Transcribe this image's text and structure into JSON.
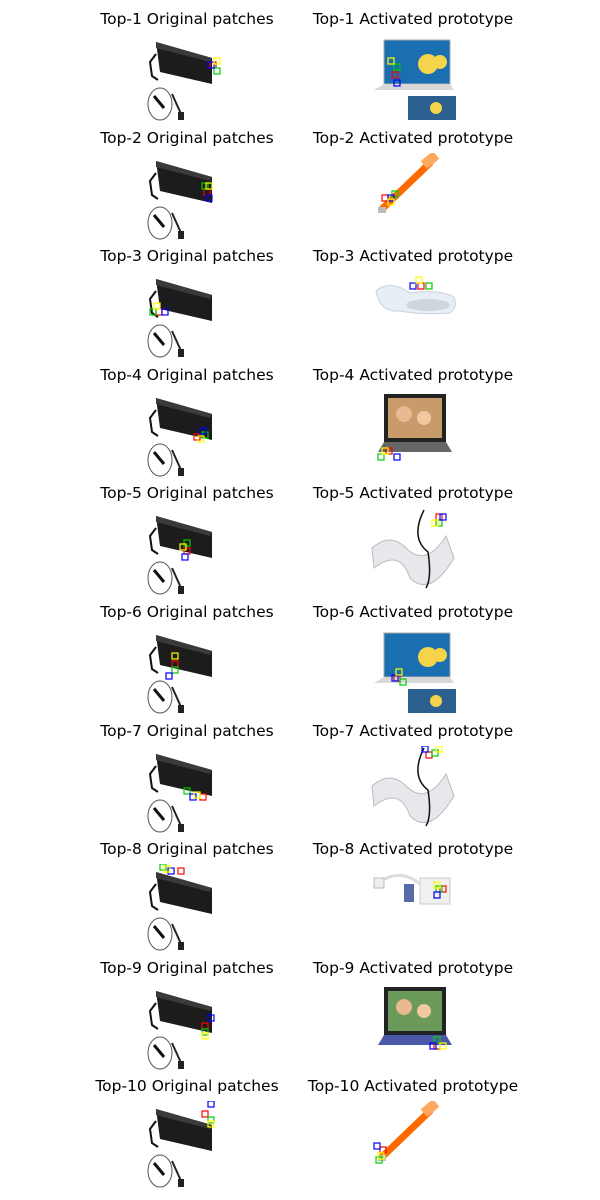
{
  "rows": [
    {
      "original_title": "Top-1 Original patches",
      "prototype_title": "Top-1 Activated prototype",
      "prototype_image": "laptop-minions"
    },
    {
      "original_title": "Top-2 Original patches",
      "prototype_title": "Top-2 Activated prototype",
      "prototype_image": "usb-led-light"
    },
    {
      "original_title": "Top-3 Original patches",
      "prototype_title": "Top-3 Activated prototype",
      "prototype_image": "white-usb-speaker"
    },
    {
      "original_title": "Top-4 Original patches",
      "prototype_title": "Top-4 Activated prototype",
      "prototype_image": "laptop-family"
    },
    {
      "original_title": "Top-5 Original patches",
      "prototype_title": "Top-5 Activated prototype",
      "prototype_image": "flexible-keyboard"
    },
    {
      "original_title": "Top-6 Original patches",
      "prototype_title": "Top-6 Activated prototype",
      "prototype_image": "laptop-minions"
    },
    {
      "original_title": "Top-7 Original patches",
      "prototype_title": "Top-7 Activated prototype",
      "prototype_image": "flexible-keyboard"
    },
    {
      "original_title": "Top-8 Original patches",
      "prototype_title": "Top-8 Activated prototype",
      "prototype_image": "white-power-adapter"
    },
    {
      "original_title": "Top-9 Original patches",
      "prototype_title": "Top-9 Activated prototype",
      "prototype_image": "laptop-family-blue"
    },
    {
      "original_title": "Top-10 Original patches",
      "prototype_title": "Top-10 Activated prototype",
      "prototype_image": "usb-led-light"
    }
  ],
  "original_image": "black-power-adapter",
  "patch_colors": [
    "#ff0000",
    "#00cc00",
    "#0000ff",
    "#ffff00"
  ]
}
